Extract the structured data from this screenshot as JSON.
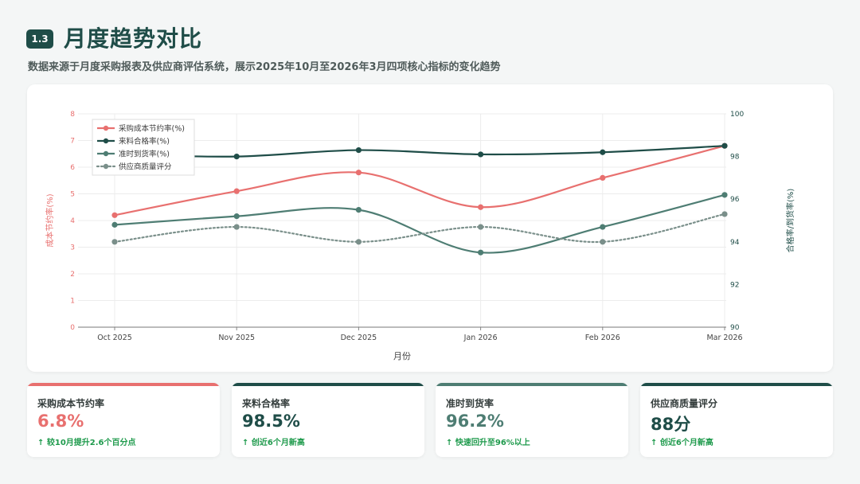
{
  "header": {
    "badge": "1.3",
    "title": "月度趋势对比",
    "subtitle": "数据来源于月度采购报表及供应商评估系统，展示2025年10月至2026年3月四项核心指标的变化趋势"
  },
  "chart_data": {
    "type": "line",
    "categories": [
      "Oct 2025",
      "Nov 2025",
      "Dec 2025",
      "Jan 2026",
      "Feb 2026",
      "Mar 2026"
    ],
    "xlabel": "月份",
    "ylabel_left": "成本节约率(%)",
    "ylabel_right": "合格率/到货率(%)",
    "ylim_left": [
      0,
      8
    ],
    "ylim_right": [
      90,
      100
    ],
    "left_ticks": [
      "0",
      "1",
      "2",
      "3",
      "4",
      "5",
      "6",
      "7",
      "8"
    ],
    "right_ticks": [
      "90",
      "92",
      "94",
      "96",
      "98",
      "100"
    ],
    "grid": true,
    "legend_position": "top-left",
    "series": [
      {
        "name": "采购成本节约率(%)",
        "axis": "left",
        "color": "#e8706f",
        "style": "solid",
        "values": [
          4.2,
          5.1,
          5.8,
          4.5,
          5.6,
          6.8
        ]
      },
      {
        "name": "来料合格率(%)",
        "axis": "right",
        "color": "#1f4d48",
        "style": "solid",
        "values": [
          98.1,
          98.0,
          98.3,
          98.1,
          98.2,
          98.5
        ]
      },
      {
        "name": "准时到货率(%)",
        "axis": "right",
        "color": "#4e7d73",
        "style": "solid",
        "values": [
          94.8,
          95.2,
          95.5,
          93.5,
          94.7,
          96.2
        ]
      },
      {
        "name": "供应商质量评分",
        "axis": "right",
        "color": "#7a8f8a",
        "style": "dotted",
        "values": [
          94.0,
          94.7,
          94.0,
          94.7,
          94.0,
          95.3
        ]
      }
    ]
  },
  "kpis": [
    {
      "label": "采购成本节约率",
      "value": "6.8%",
      "note": "↑ 较10月提升2.6个百分点",
      "color": "#e8706f"
    },
    {
      "label": "来料合格率",
      "value": "98.5%",
      "note": "↑ 创近6个月新高",
      "color": "#1f4d48"
    },
    {
      "label": "准时到货率",
      "value": "96.2%",
      "note": "↑ 快速回升至96%以上",
      "color": "#4e7d73"
    },
    {
      "label": "供应商质量评分",
      "value": "88分",
      "note": "↑ 创近6个月新高",
      "color": "#1f4d48"
    }
  ]
}
